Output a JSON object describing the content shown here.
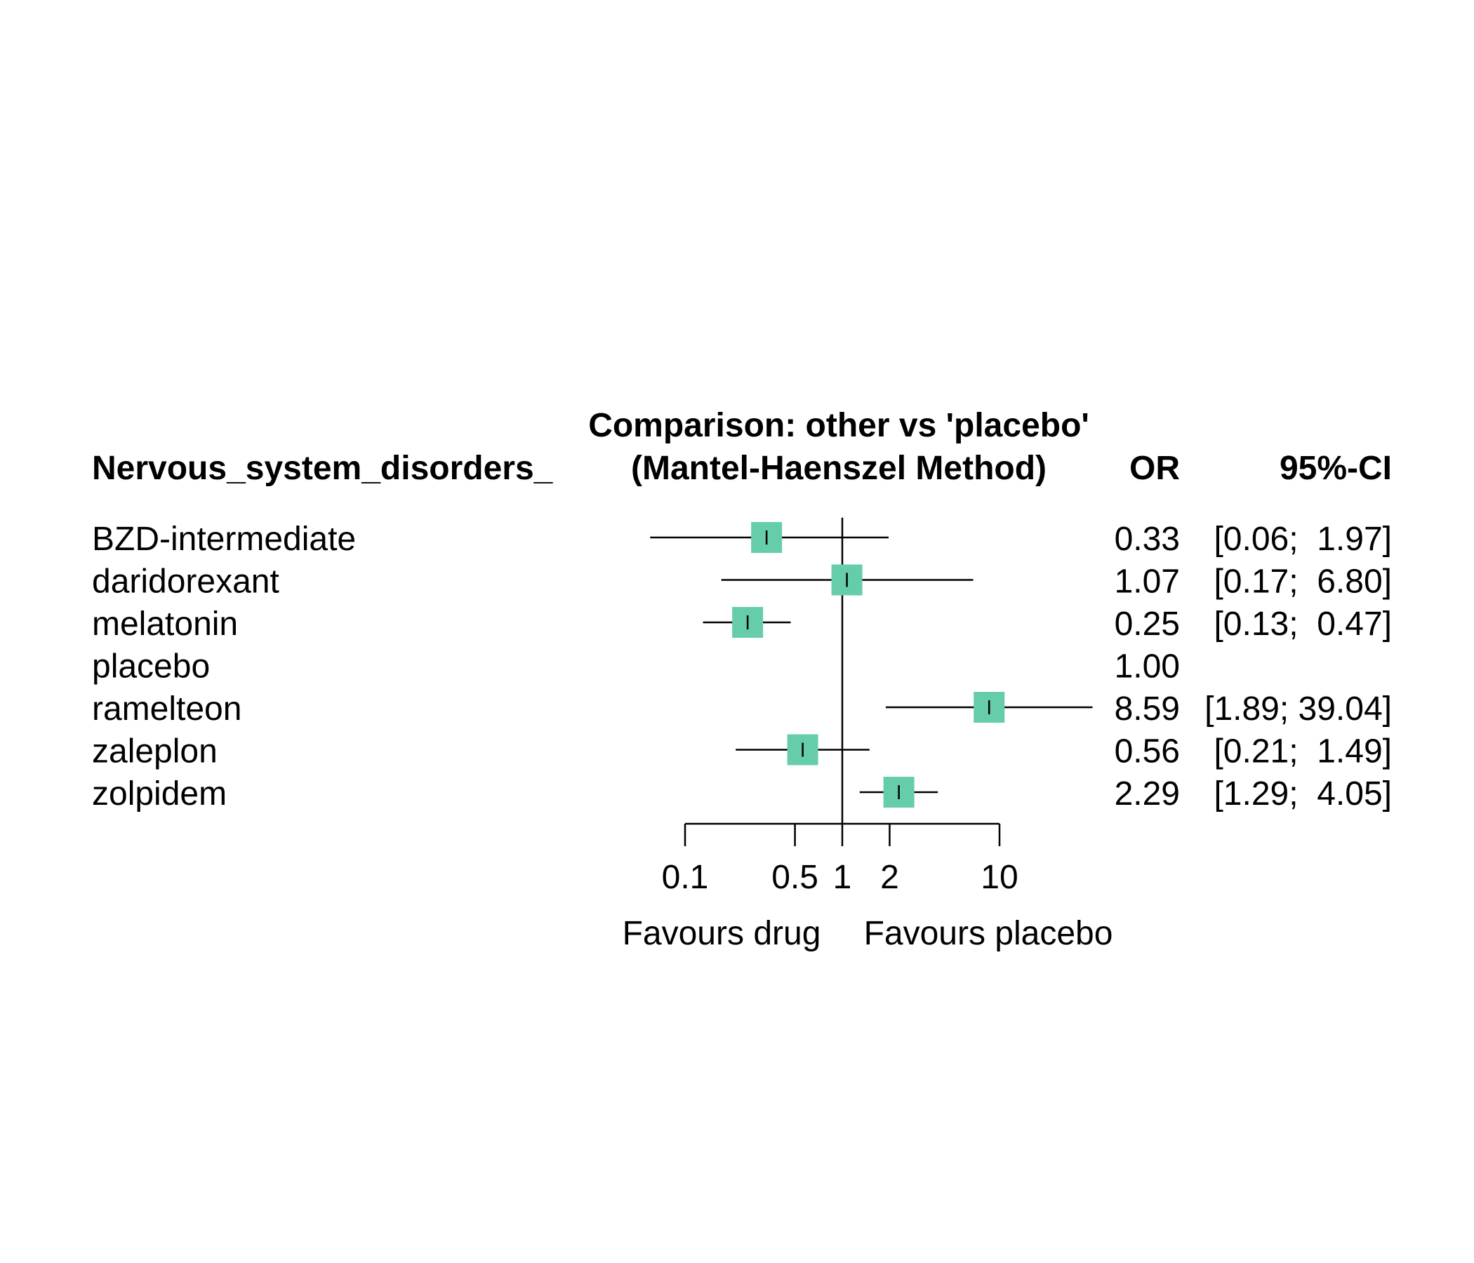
{
  "chart_data": {
    "type": "forest",
    "title_line1": "Comparison: other vs 'placebo'",
    "title_line2": "(Mantel-Haenszel Method)",
    "outcome_label": "Nervous_system_disorders_",
    "col_or_header": "OR",
    "col_ci_header": "95%-CI",
    "scale": "log",
    "reference_value": 1,
    "xlim": [
      0.1,
      10
    ],
    "ticks": [
      0.1,
      0.5,
      1,
      2,
      10
    ],
    "tick_labels": [
      "0.1",
      "0.5",
      "1",
      "2",
      "10"
    ],
    "label_left": "Favours drug",
    "label_right": "Favours placebo",
    "marker_color": "#66CDAA",
    "rows": [
      {
        "name": "BZD-intermediate",
        "or": 0.33,
        "lower": 0.06,
        "upper": 1.97,
        "or_text": "0.33",
        "ci_text": "[0.06;  1.97]",
        "weight": 1.0
      },
      {
        "name": "daridorexant",
        "or": 1.07,
        "lower": 0.17,
        "upper": 6.8,
        "or_text": "1.07",
        "ci_text": "[0.17;  6.80]",
        "weight": 1.0
      },
      {
        "name": "melatonin",
        "or": 0.25,
        "lower": 0.13,
        "upper": 0.47,
        "or_text": "0.25",
        "ci_text": "[0.13;  0.47]",
        "weight": 1.0
      },
      {
        "name": "placebo",
        "or": 1.0,
        "lower": null,
        "upper": null,
        "or_text": "1.00",
        "ci_text": "",
        "weight": 0
      },
      {
        "name": "ramelteon",
        "or": 8.59,
        "lower": 1.89,
        "upper": 39.04,
        "or_text": "8.59",
        "ci_text": "[1.89; 39.04]",
        "weight": 1.0
      },
      {
        "name": "zaleplon",
        "or": 0.56,
        "lower": 0.21,
        "upper": 1.49,
        "or_text": "0.56",
        "ci_text": "[0.21;  1.49]",
        "weight": 1.0
      },
      {
        "name": "zolpidem",
        "or": 2.29,
        "lower": 1.29,
        "upper": 4.05,
        "or_text": "2.29",
        "ci_text": "[1.29;  4.05]",
        "weight": 1.0
      }
    ]
  }
}
